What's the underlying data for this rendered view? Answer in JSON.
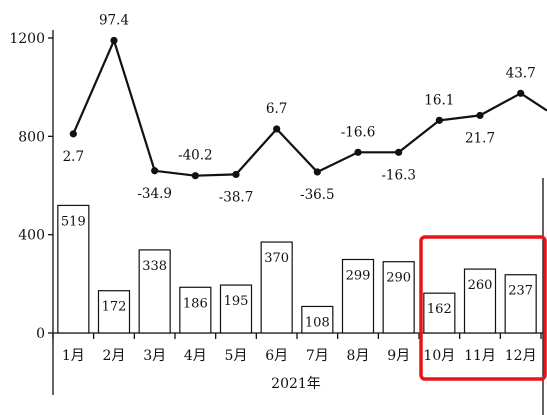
{
  "chart_data": {
    "type": "bar",
    "categories": [
      "1月",
      "2月",
      "3月",
      "4月",
      "5月",
      "6月",
      "7月",
      "8月",
      "9月",
      "10月",
      "11月",
      "12月"
    ],
    "xlabel": "2021年",
    "ylim": [
      0,
      1200
    ],
    "yticks": [
      0,
      400,
      800,
      1200
    ],
    "series": [
      {
        "type": "bar",
        "values": [
          519,
          172,
          338,
          186,
          195,
          370,
          108,
          299,
          290,
          162,
          260,
          237
        ]
      },
      {
        "type": "line",
        "labels": [
          "2.7",
          "97.4",
          "-34.9",
          "-40.2",
          "-38.7",
          "6.7",
          "-36.5",
          "-16.6",
          "-16.3",
          "16.1",
          "21.7",
          "43.7"
        ],
        "values": [
          810,
          1190,
          660,
          640,
          645,
          830,
          655,
          735,
          735,
          865,
          885,
          975
        ]
      }
    ],
    "highlight": {
      "from": "10月",
      "to": "12月",
      "color": "#e8141a"
    },
    "grid": false
  }
}
